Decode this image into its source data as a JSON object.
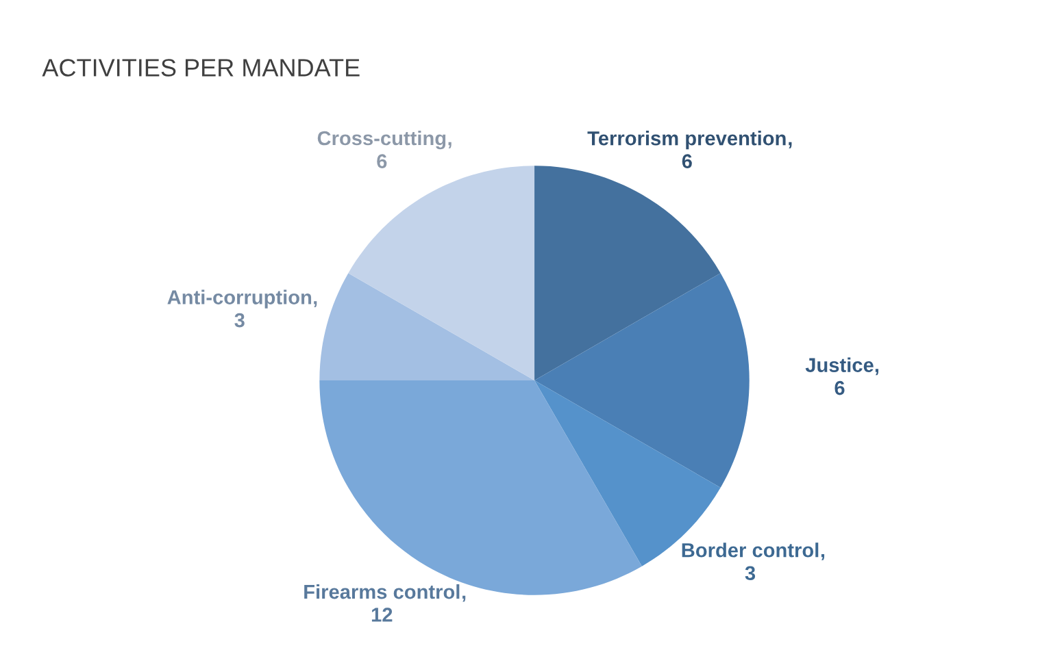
{
  "chart_data": {
    "type": "pie",
    "title": "ACTIVITIES PER MANDATE",
    "categories": [
      "Terrorism prevention",
      "Justice",
      "Border control",
      "Firearms control",
      "Anti-corruption",
      "Cross-cutting"
    ],
    "values": [
      6,
      6,
      3,
      12,
      3,
      6
    ],
    "colors": [
      "#44719e",
      "#4a7fb5",
      "#5592cb",
      "#7aa8d9",
      "#a3bfe3",
      "#c3d3ea"
    ],
    "data_labels": true,
    "annotations": [
      ","
    ],
    "legend": false
  }
}
